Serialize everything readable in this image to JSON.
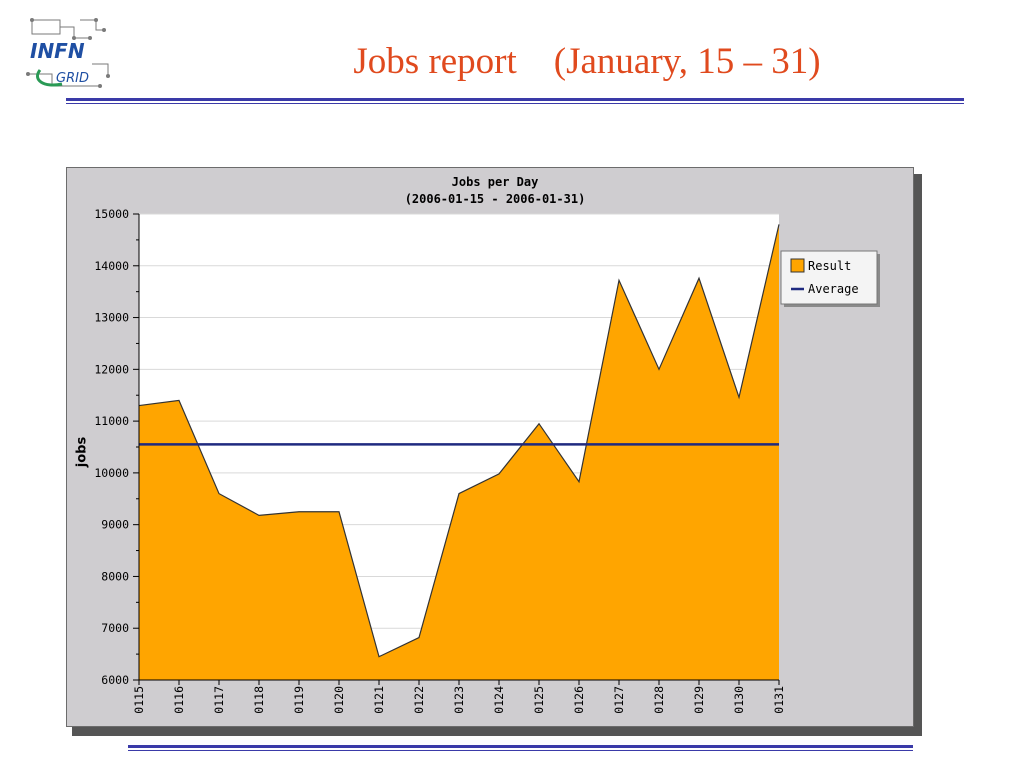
{
  "slide": {
    "title": "Jobs report    (January, 15 – 31)",
    "title_color": "#e04a1e",
    "logo": {
      "line1": "INFN",
      "line2": "GRID",
      "colors": {
        "text": "#1f4fa3",
        "swoosh": "#2a9a55"
      }
    },
    "rule_color": "#3a3aa8"
  },
  "chart_data": {
    "type": "area",
    "title": "Jobs per Day",
    "subtitle": "(2006-01-15 - 2006-01-31)",
    "ylabel": "jobs",
    "xlabel": "",
    "categories": [
      "0115",
      "0116",
      "0117",
      "0118",
      "0119",
      "0120",
      "0121",
      "0122",
      "0123",
      "0124",
      "0125",
      "0126",
      "0127",
      "0128",
      "0129",
      "0130",
      "0131"
    ],
    "series": [
      {
        "name": "Result",
        "kind": "area",
        "color": "#ffa500",
        "values": [
          11300,
          11400,
          9600,
          9180,
          9250,
          9250,
          6450,
          6820,
          9600,
          9980,
          10950,
          9830,
          13720,
          12000,
          13760,
          11460,
          14800
        ]
      },
      {
        "name": "Average",
        "kind": "line",
        "color": "#1f2a80",
        "value": 10550
      }
    ],
    "ylim": [
      6000,
      15000
    ],
    "yticks": [
      6000,
      7000,
      8000,
      9000,
      10000,
      11000,
      12000,
      13000,
      14000,
      15000
    ],
    "grid": true,
    "legend_position": "right",
    "plot_background": "#ffffff",
    "panel_background": "#cfcdd0"
  }
}
